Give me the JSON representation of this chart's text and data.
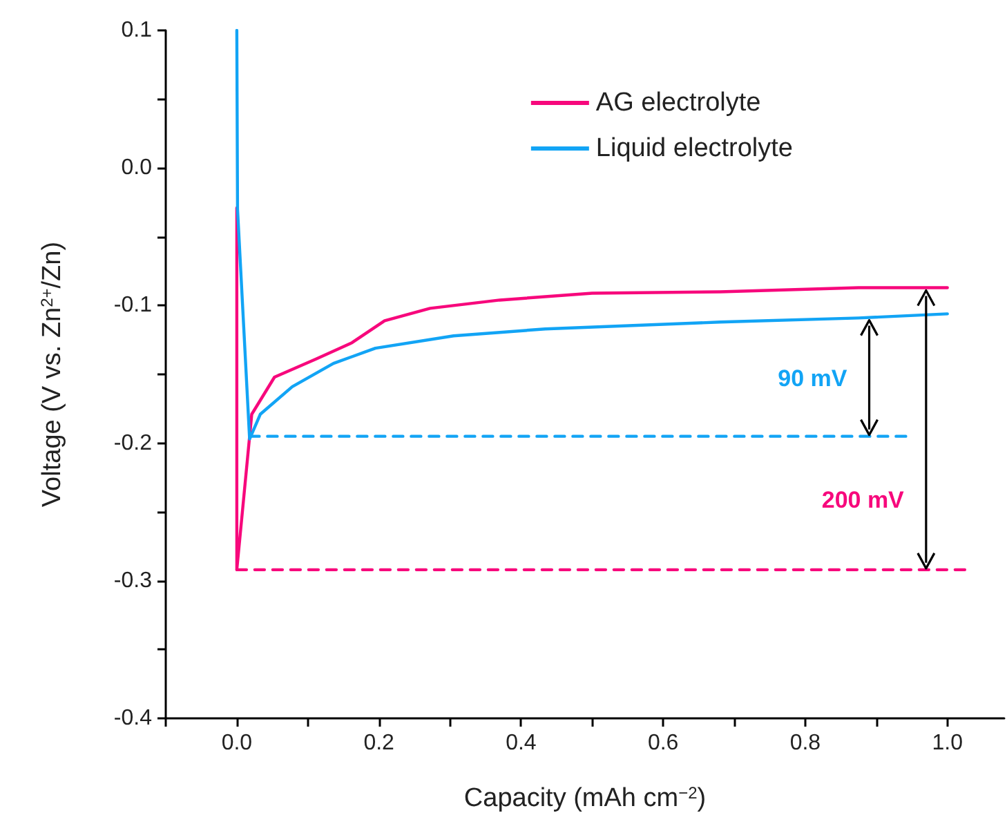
{
  "chart_data": {
    "type": "line",
    "xlabel": "Capacity (mAh cm$^{−2}$)",
    "ylabel": "Voltage (V vs. Zn$^{2+}$/Zn)",
    "xlim": [
      -0.1,
      1.08
    ],
    "ylim": [
      -0.4,
      0.1
    ],
    "xticks": [
      {
        "value": -0.1,
        "label": null
      },
      {
        "value": 0,
        "label": "0.0"
      },
      {
        "value": 0.1,
        "label": null
      },
      0.2,
      {
        "value": 0.3,
        "label": null
      },
      0.4,
      {
        "value": 0.5,
        "label": null
      },
      0.6,
      {
        "value": 0.7,
        "label": null
      },
      0.8,
      {
        "value": 0.9,
        "label": null
      },
      {
        "value": 1,
        "label": "1.0"
      }
    ],
    "yticks": [
      {
        "value": -0.4,
        "label": "-0.4"
      },
      {
        "value": -0.35,
        "label": null
      },
      {
        "value": -0.3,
        "label": "-0.3"
      },
      {
        "value": -0.25,
        "label": null
      },
      {
        "value": -0.2,
        "label": "-0.2"
      },
      {
        "value": -0.15,
        "label": null
      },
      {
        "value": -0.1,
        "label": "-0.1"
      },
      {
        "value": -0.05,
        "label": null
      },
      {
        "value": 0,
        "label": "0.0"
      },
      {
        "value": 0.05,
        "label": null
      },
      0.1
    ],
    "grid": false,
    "legend": "top right",
    "marker": "none",
    "series": [
      {
        "name": "AG electrolyte",
        "color": "#f7087c",
        "x": [
          0,
          0,
          0.021,
          0.053,
          0.111,
          0.162,
          0.208,
          0.272,
          0.37,
          0.5,
          0.68,
          0.875,
          1.0
        ],
        "values": [
          -0.029,
          -0.292,
          -0.179,
          -0.152,
          -0.139,
          -0.127,
          -0.111,
          -0.102,
          -0.096,
          -0.091,
          -0.09,
          -0.087,
          -0.087
        ]
      },
      {
        "name": "Liquid electrolyte",
        "color": "#12a4f5",
        "x": [
          0,
          0.001,
          0.018,
          0.033,
          0.078,
          0.136,
          0.195,
          0.305,
          0.434,
          0.68,
          0.875,
          1.0
        ],
        "values": [
          0.1,
          -0.03,
          -0.197,
          -0.179,
          -0.159,
          -0.142,
          -0.131,
          -0.122,
          -0.117,
          -0.112,
          -0.109,
          -0.106
        ]
      },
      {
        "color": "#12a4f5",
        "line_style": "dashed",
        "x": [
          0.018,
          0.95
        ],
        "values": [
          -0.195,
          -0.195
        ]
      },
      {
        "color": "#f7087c",
        "line_style": "dashed",
        "x": [
          0,
          1.03
        ],
        "values": [
          -0.292,
          -0.292
        ]
      }
    ],
    "annotations": [
      {
        "text": "90 mV",
        "x": 0.89,
        "y": -0.195
      },
      {
        "text": "200 mV",
        "x": 0.97,
        "y": -0.292
      }
    ]
  }
}
